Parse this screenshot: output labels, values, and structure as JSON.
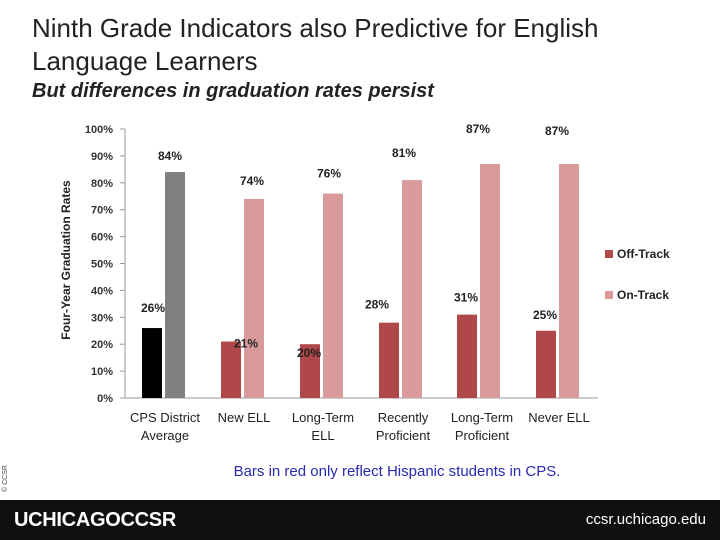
{
  "title": "Ninth Grade Indicators also Predictive for English Language Learners",
  "subtitle": "But differences in graduation rates persist",
  "footnote": "Bars in red only reflect Hispanic students in CPS.",
  "copyright": "© CCSR",
  "footer": {
    "brand": "UCHICAGOCCSR",
    "url": "ccsr.uchicago.edu"
  },
  "colors": {
    "off_track_avg": "#000000",
    "on_track_avg": "#808080",
    "off_track": "#b0484a",
    "on_track": "#d99a9b"
  },
  "chart_data": {
    "type": "bar",
    "ylabel": "Four-Year Graduation Rates",
    "ylim": [
      0,
      100
    ],
    "yticks": [
      "0%",
      "10%",
      "20%",
      "30%",
      "40%",
      "50%",
      "60%",
      "70%",
      "80%",
      "90%",
      "100%"
    ],
    "categories": [
      [
        "CPS District",
        "Average"
      ],
      [
        "New ELL"
      ],
      [
        "Long-Term",
        "ELL"
      ],
      [
        "Recently",
        "Proficient"
      ],
      [
        "Long-Term",
        "Proficient"
      ],
      [
        "Never ELL"
      ]
    ],
    "series": [
      {
        "name": "Off-Track",
        "values": [
          26,
          21,
          20,
          28,
          31,
          25
        ]
      },
      {
        "name": "On-Track",
        "values": [
          84,
          74,
          76,
          81,
          87,
          87
        ]
      }
    ],
    "data_labels": [
      [
        "26%",
        "21%",
        "20%",
        "28%",
        "31%",
        "25%"
      ],
      [
        "84%",
        "74%",
        "76%",
        "81%",
        "87%",
        "87%"
      ]
    ],
    "legend": [
      "Off-Track",
      "On-Track"
    ]
  }
}
